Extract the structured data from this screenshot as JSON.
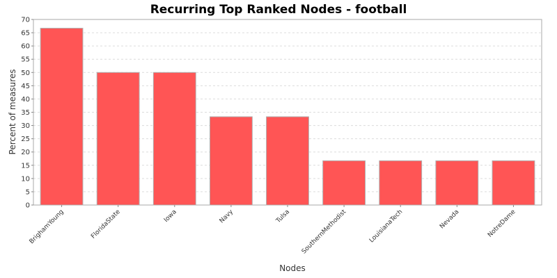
{
  "chart_data": {
    "type": "bar",
    "title": "Recurring Top Ranked Nodes - football",
    "xlabel": "Nodes",
    "ylabel": "Percent of measures",
    "ylim": [
      0,
      70
    ],
    "yticks": [
      0,
      5,
      10,
      15,
      20,
      25,
      30,
      35,
      40,
      45,
      50,
      55,
      60,
      65,
      70
    ],
    "grid": true,
    "categories": [
      "BrighamYoung",
      "FloridaState",
      "Iowa",
      "Navy",
      "Tulsa",
      "SouthernMethodist",
      "LouisianaTech",
      "Nevada",
      "NotreDame"
    ],
    "values": [
      66.7,
      50.0,
      50.0,
      33.3,
      33.3,
      16.7,
      16.7,
      16.7,
      16.7
    ],
    "bar_color": "#ff5555",
    "bar_edge_color": "#b0b0b0"
  }
}
